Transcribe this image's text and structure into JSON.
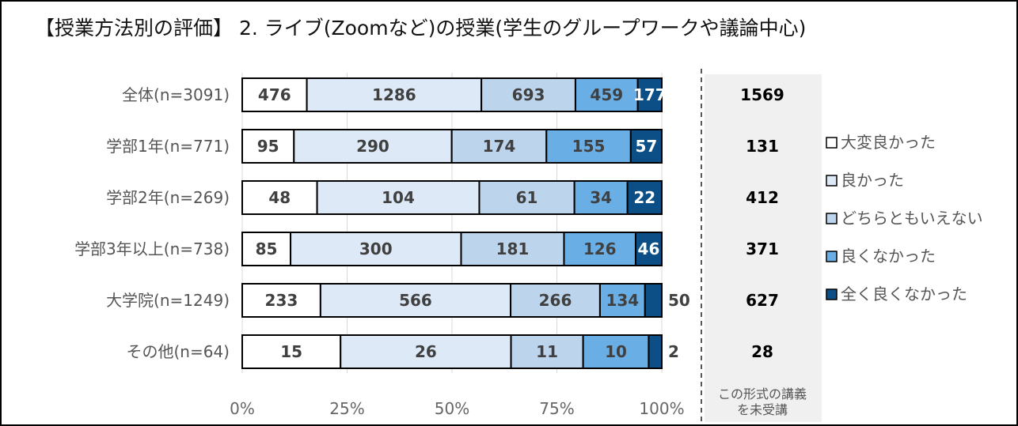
{
  "chart_data": {
    "type": "bar",
    "stacked": "percent",
    "orientation": "horizontal",
    "title": "【授業方法別の評価】 2. ライブ(Zoomなど)の授業(学生のグループワークや議論中心)",
    "categories": [
      "全体(n=3091)",
      "学部1年(n=771)",
      "学部2年(n=269)",
      "学部3年以上(n=738)",
      "大学院(n=1249)",
      "その他(n=64)"
    ],
    "series": [
      {
        "name": "大変良かった",
        "color": "#ffffff",
        "values": [
          476,
          95,
          48,
          85,
          233,
          15
        ]
      },
      {
        "name": "良かった",
        "color": "#dde9f6",
        "values": [
          1286,
          290,
          104,
          300,
          566,
          26
        ]
      },
      {
        "name": "どちらともいえない",
        "color": "#bcd4ec",
        "values": [
          693,
          174,
          61,
          181,
          266,
          11
        ]
      },
      {
        "name": "良くなかった",
        "color": "#6aaee6",
        "values": [
          459,
          155,
          34,
          126,
          134,
          10
        ]
      },
      {
        "name": "全く良くなかった",
        "color": "#0b4f86",
        "values": [
          177,
          57,
          22,
          46,
          50,
          2
        ]
      }
    ],
    "not_taken": {
      "label": "この形式の講義を未受講",
      "label_lines": [
        "この形式の講義",
        "を未受講"
      ],
      "values": [
        1569,
        131,
        412,
        371,
        627,
        28
      ]
    },
    "xticks": [
      "0%",
      "25%",
      "50%",
      "75%",
      "100%"
    ],
    "xlim": [
      0,
      100
    ],
    "grid": true,
    "legend": "right"
  }
}
